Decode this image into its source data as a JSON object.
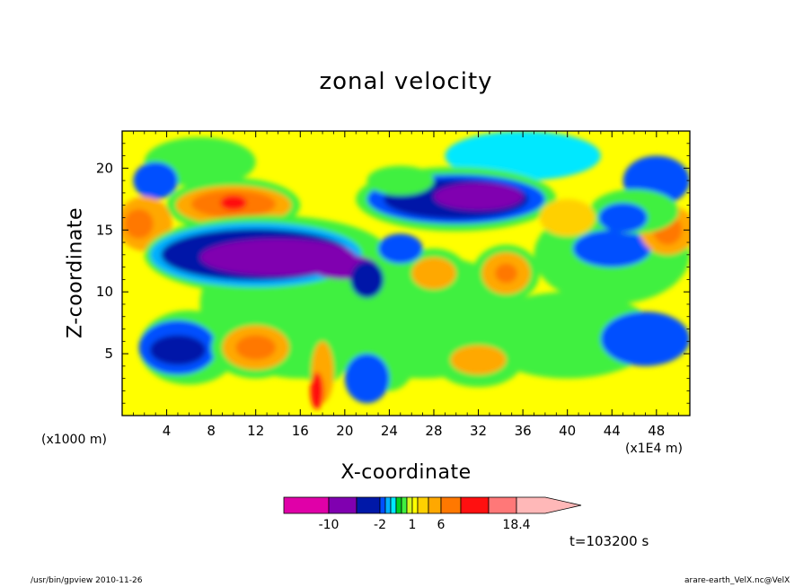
{
  "title": "zonal velocity",
  "chart_data": {
    "type": "heatmap",
    "title": "zonal velocity",
    "xlabel": "X-coordinate",
    "ylabel": "Z-coordinate",
    "x_unit": "(x1E4 m)",
    "y_unit": "(x1000 m)",
    "xlim": [
      0,
      51
    ],
    "ylim": [
      0,
      23
    ],
    "x_ticks": [
      4,
      8,
      12,
      16,
      20,
      24,
      28,
      32,
      36,
      40,
      44,
      48
    ],
    "y_ticks": [
      5,
      10,
      15,
      20
    ],
    "colorbar": {
      "levels": [
        -14,
        -10,
        -6,
        -2,
        -1.5,
        -1,
        -0.5,
        0,
        0.5,
        1,
        2,
        4,
        6,
        10,
        14,
        18.4
      ],
      "colors": [
        "#e000a8",
        "#8000b0",
        "#0018a8",
        "#0050ff",
        "#00b0ff",
        "#00e8ff",
        "#00d020",
        "#40f040",
        "#d8f820",
        "#ffff00",
        "#ffd000",
        "#ffa800",
        "#ff7800",
        "#ff1010",
        "#ff7878",
        "#ffb8b8"
      ],
      "labels": [
        "-10",
        "-2",
        "1",
        "6",
        "18.4"
      ],
      "label_values": [
        -10,
        -2,
        1,
        6,
        18.4
      ]
    },
    "features": [
      {
        "name": "orange jet",
        "x": 10,
        "z": 17.2,
        "value": 12
      },
      {
        "name": "blue jet",
        "x": 13,
        "z": 13,
        "value": -8
      },
      {
        "name": "blue jet upper",
        "x": 31,
        "z": 17.5,
        "value": -7
      },
      {
        "name": "blue cell",
        "x": 6,
        "z": 5,
        "value": -3
      },
      {
        "name": "orange cell",
        "x": 12,
        "z": 5.5,
        "value": 6
      },
      {
        "name": "orange cell east",
        "x": 35,
        "z": 11.5,
        "value": 6
      },
      {
        "name": "cyan cell east",
        "x": 48,
        "z": 6,
        "value": -2
      }
    ]
  },
  "time_label": "t=103200 s",
  "footer": {
    "left": "/usr/bin/gpview   2010-11-26",
    "right": "arare-earth_VelX.nc@VelX"
  }
}
